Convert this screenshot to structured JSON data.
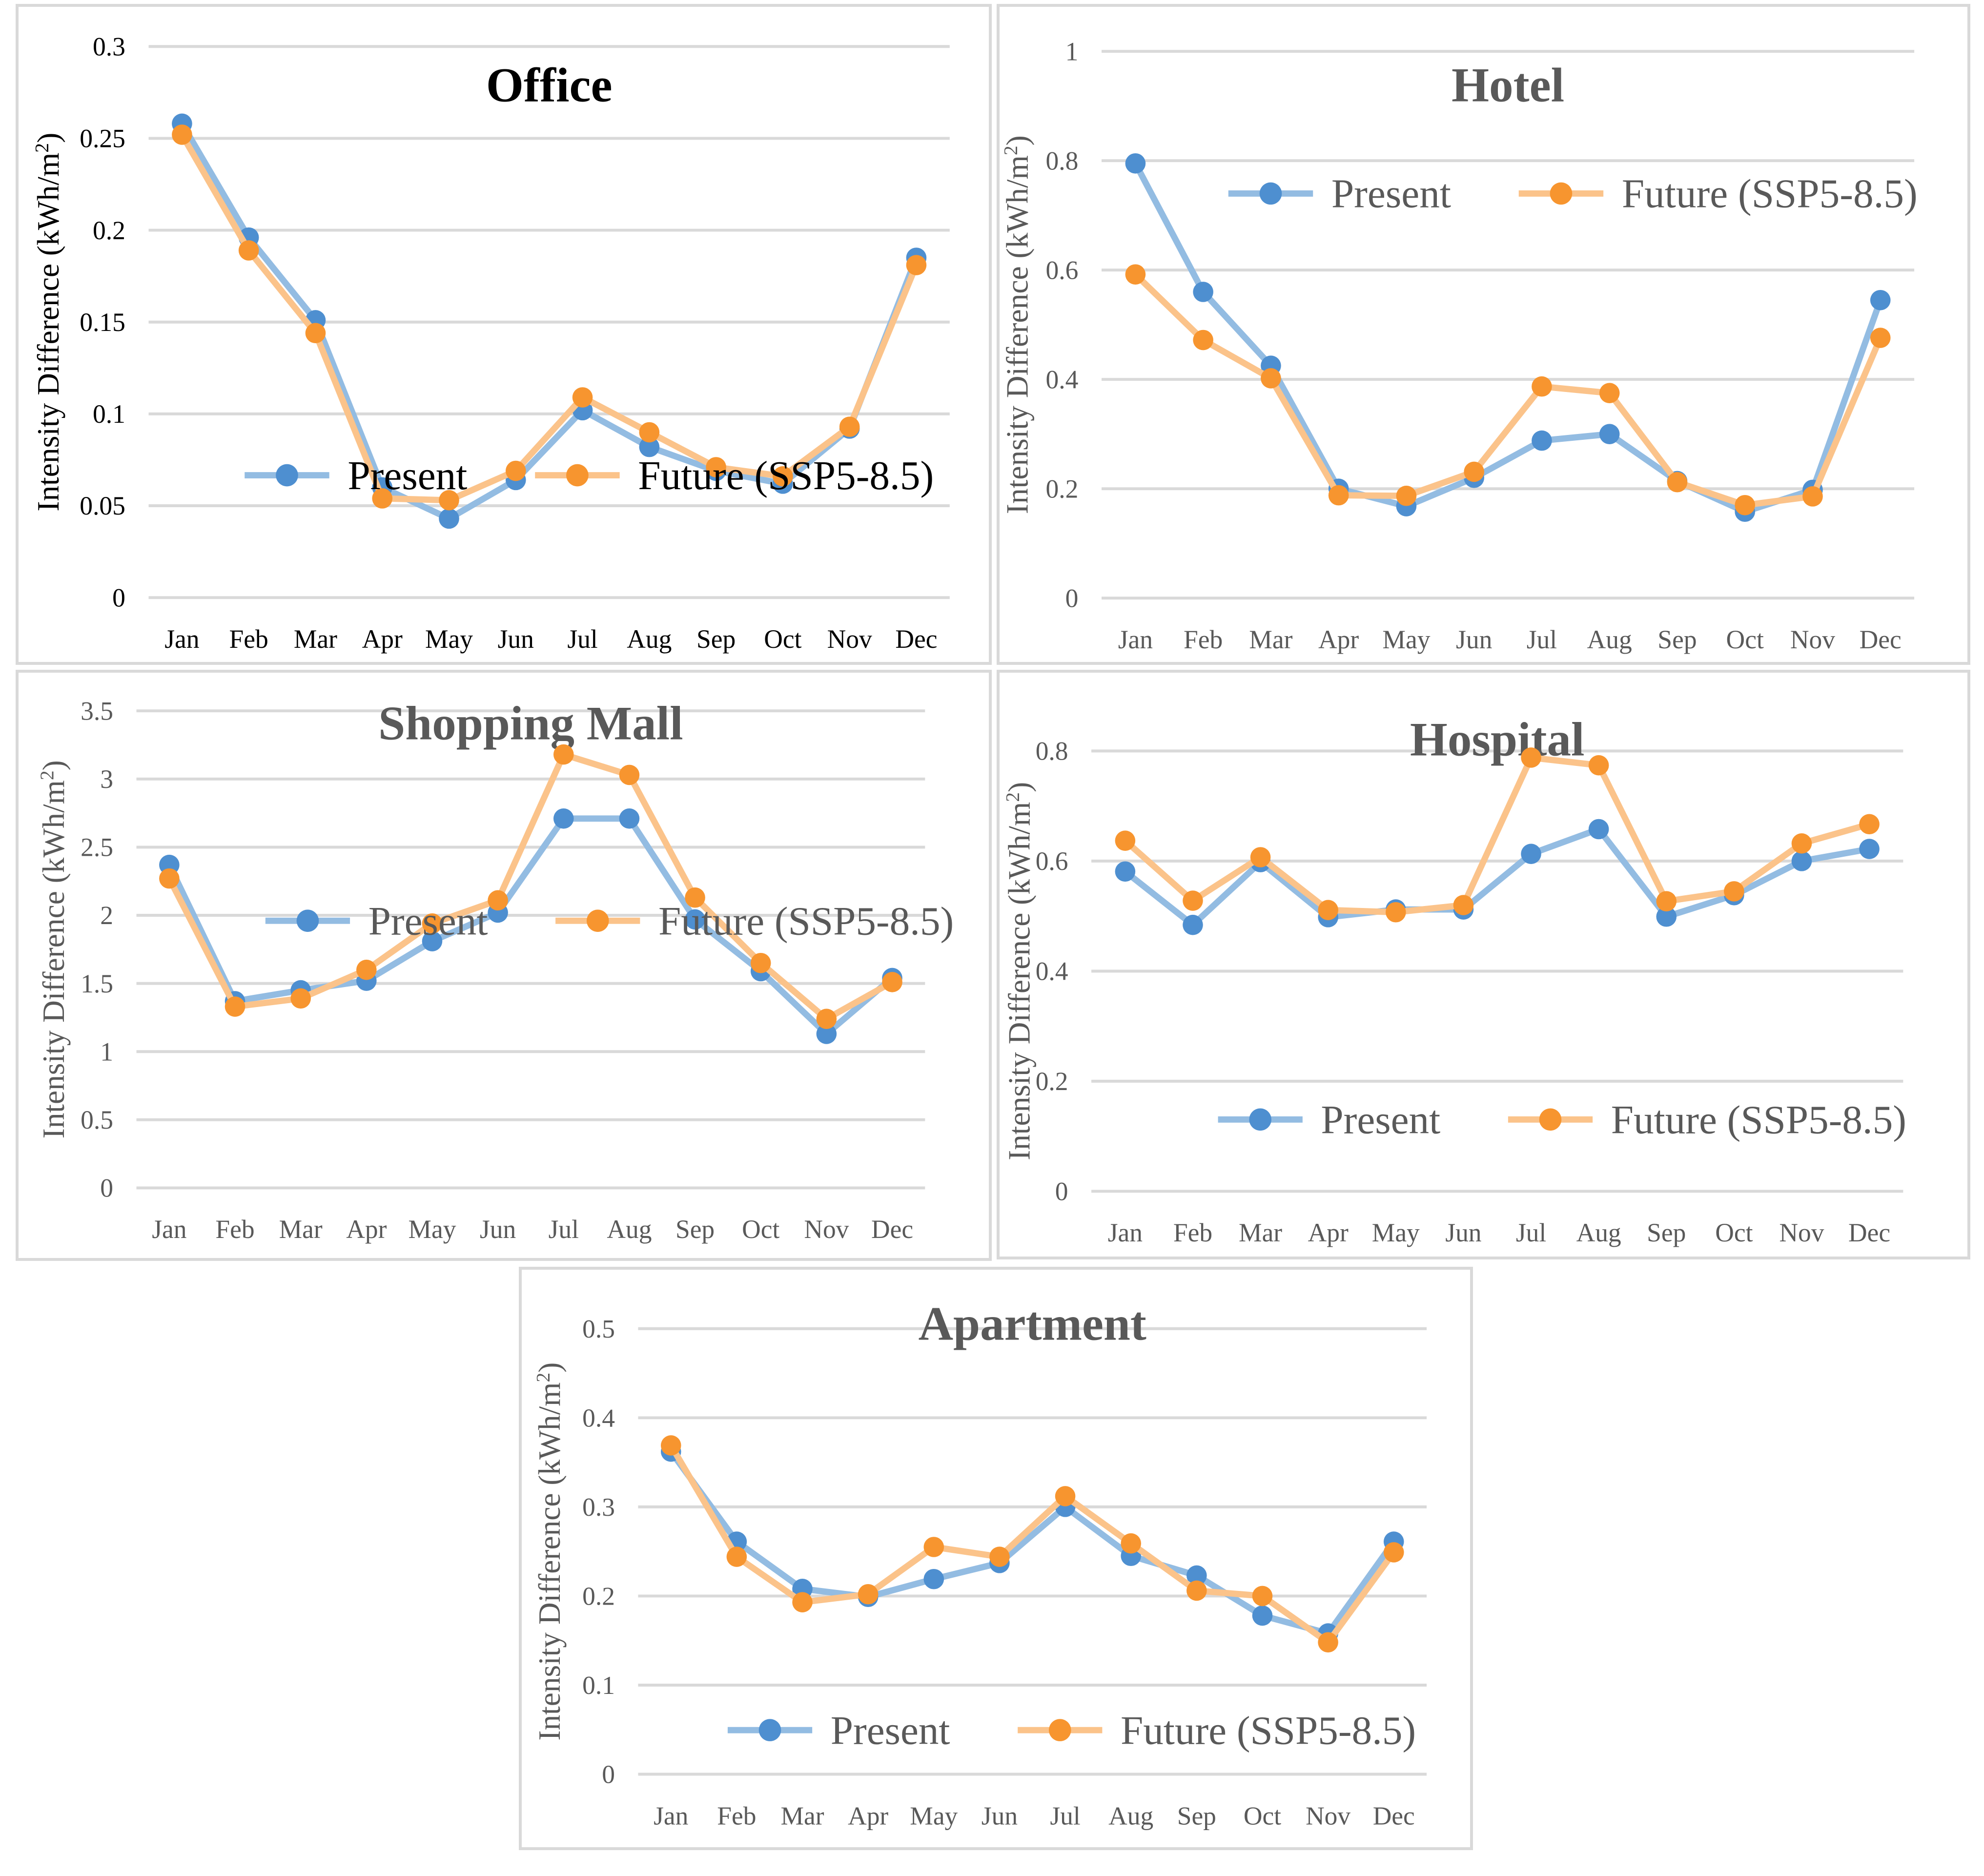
{
  "figure": {
    "legend_labels": {
      "present": "Present",
      "future": "Future (SSP5-8.5)"
    },
    "y_axis_label": {
      "pre": "Intensity Difference (kWh/m",
      "sup": "2",
      "post": ")"
    }
  },
  "colors": {
    "present_marker": "#4E8FD0",
    "present_line": "#93BCE2",
    "future_marker": "#F7952F",
    "future_line": "#FBC38A",
    "grid": "#D9D9D9",
    "panel_border": "#D9D9D9",
    "office_text": "#000000",
    "gray_text": "#595959"
  },
  "chart_data": [
    {
      "type": "line",
      "title": "Office",
      "categories": [
        "Jan",
        "Feb",
        "Mar",
        "Apr",
        "May",
        "Jun",
        "Jul",
        "Aug",
        "Sep",
        "Oct",
        "Nov",
        "Dec"
      ],
      "xlabel": "",
      "ylabel": "Intensity Difference (kWh/m²)",
      "ylim": [
        0,
        0.3
      ],
      "yticks": [
        "0",
        "0.05",
        "0.1",
        "0.15",
        "0.2",
        "0.25",
        "0.3"
      ],
      "grid": true,
      "legend_position": "inside-top-center",
      "series": [
        {
          "name": "Present",
          "values": [
            0.258,
            0.196,
            0.151,
            0.06,
            0.043,
            0.064,
            0.102,
            0.082,
            0.069,
            0.062,
            0.092,
            0.185
          ]
        },
        {
          "name": "Future (SSP5-8.5)",
          "values": [
            0.252,
            0.189,
            0.144,
            0.054,
            0.053,
            0.069,
            0.109,
            0.09,
            0.071,
            0.066,
            0.093,
            0.181
          ]
        }
      ]
    },
    {
      "type": "line",
      "title": "Hotel",
      "categories": [
        "Jan",
        "Feb",
        "Mar",
        "Apr",
        "May",
        "Jun",
        "Jul",
        "Aug",
        "Sep",
        "Oct",
        "Nov",
        "Dec"
      ],
      "xlabel": "",
      "ylabel": "Intensity Difference (kWh/m²)",
      "ylim": [
        0,
        1
      ],
      "yticks": [
        "0",
        "0.2",
        "0.4",
        "0.6",
        "0.8",
        "1"
      ],
      "grid": true,
      "legend_position": "inside-top-center",
      "series": [
        {
          "name": "Present",
          "values": [
            0.795,
            0.56,
            0.425,
            0.2,
            0.168,
            0.22,
            0.288,
            0.3,
            0.214,
            0.158,
            0.198,
            0.545
          ]
        },
        {
          "name": "Future (SSP5-8.5)",
          "values": [
            0.592,
            0.472,
            0.402,
            0.188,
            0.187,
            0.231,
            0.387,
            0.375,
            0.212,
            0.17,
            0.186,
            0.476
          ]
        }
      ]
    },
    {
      "type": "line",
      "title": "Shopping Mall",
      "categories": [
        "Jan",
        "Feb",
        "Mar",
        "Apr",
        "May",
        "Jun",
        "Jul",
        "Aug",
        "Sep",
        "Oct",
        "Nov",
        "Dec"
      ],
      "xlabel": "",
      "ylabel": "Intensity Difference (kWh/m²)",
      "ylim": [
        0,
        3.5
      ],
      "yticks": [
        "0",
        "0.5",
        "1",
        "1.5",
        "2",
        "2.5",
        "3",
        "3.5"
      ],
      "grid": true,
      "legend_position": "inside-lower-center",
      "series": [
        {
          "name": "Present",
          "values": [
            2.37,
            1.37,
            1.45,
            1.52,
            1.81,
            2.02,
            2.71,
            2.71,
            1.97,
            1.59,
            1.13,
            1.54
          ]
        },
        {
          "name": "Future (SSP5-8.5)",
          "values": [
            2.27,
            1.33,
            1.39,
            1.6,
            1.94,
            2.11,
            3.18,
            3.03,
            2.13,
            1.65,
            1.24,
            1.51
          ]
        }
      ]
    },
    {
      "type": "line",
      "title": "Hospital",
      "categories": [
        "Jan",
        "Feb",
        "Mar",
        "Apr",
        "May",
        "Jun",
        "Jul",
        "Aug",
        "Sep",
        "Oct",
        "Nov",
        "Dec"
      ],
      "xlabel": "",
      "ylabel": "Intensity Difference (kWh/m²)",
      "ylim": [
        0,
        0.8
      ],
      "yticks": [
        "0",
        "0.2",
        "0.4",
        "0.6",
        "0.8"
      ],
      "grid": true,
      "legend_position": "inside-lower-center",
      "series": [
        {
          "name": "Present",
          "values": [
            0.581,
            0.484,
            0.598,
            0.498,
            0.512,
            0.512,
            0.613,
            0.658,
            0.499,
            0.538,
            0.6,
            0.622
          ]
        },
        {
          "name": "Future (SSP5-8.5)",
          "values": [
            0.637,
            0.528,
            0.607,
            0.511,
            0.507,
            0.52,
            0.788,
            0.774,
            0.527,
            0.545,
            0.632,
            0.667
          ]
        }
      ]
    },
    {
      "type": "line",
      "title": "Apartment",
      "categories": [
        "Jan",
        "Feb",
        "Mar",
        "Apr",
        "May",
        "Jun",
        "Jul",
        "Aug",
        "Sep",
        "Oct",
        "Nov",
        "Dec"
      ],
      "xlabel": "",
      "ylabel": "Intensity Difference (kWh/m²)",
      "ylim": [
        0,
        0.5
      ],
      "yticks": [
        "0",
        "0.1",
        "0.2",
        "0.3",
        "0.4",
        "0.5"
      ],
      "grid": true,
      "legend_position": "inside-lower-center",
      "series": [
        {
          "name": "Present",
          "values": [
            0.362,
            0.261,
            0.208,
            0.199,
            0.219,
            0.237,
            0.3,
            0.245,
            0.223,
            0.178,
            0.158,
            0.261
          ]
        },
        {
          "name": "Future (SSP5-8.5)",
          "values": [
            0.369,
            0.244,
            0.193,
            0.202,
            0.255,
            0.244,
            0.312,
            0.259,
            0.206,
            0.2,
            0.148,
            0.249
          ]
        }
      ]
    }
  ]
}
